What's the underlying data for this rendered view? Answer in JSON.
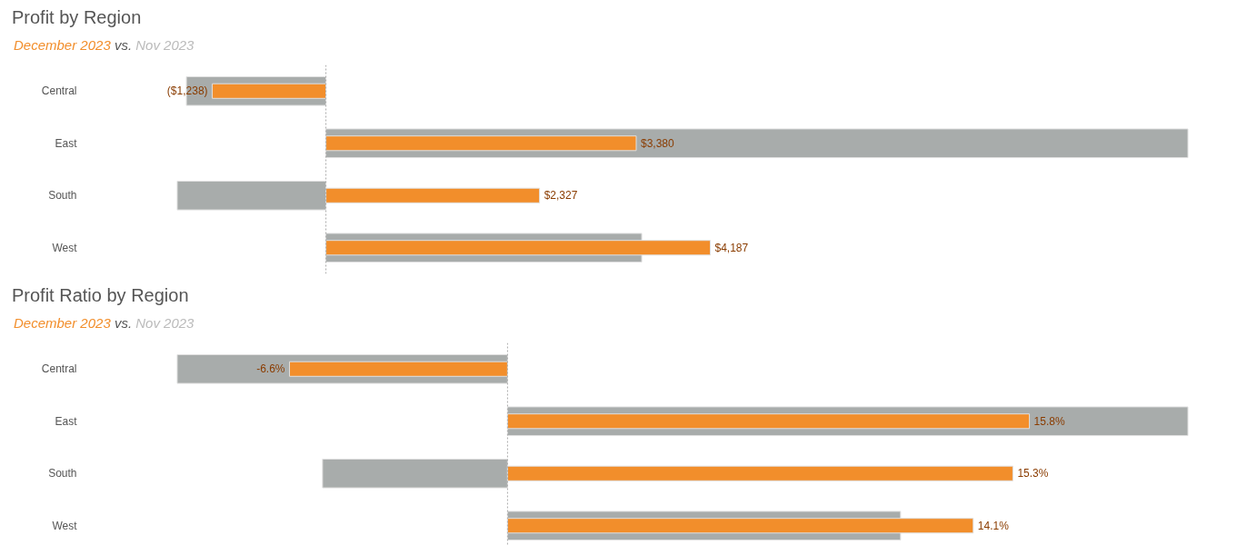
{
  "chart_data": [
    {
      "type": "bar",
      "orientation": "horizontal",
      "title": "Profit by Region",
      "subtitle": "vs.",
      "legend": "top left",
      "tick_labels": "y",
      "grid": false,
      "categories": [
        "Central",
        "East",
        "South",
        "West"
      ],
      "series": [
        {
          "name": "Nov 2023",
          "color": "#a8acab",
          "values": [
            -1520,
            9390,
            -1620,
            3440
          ]
        },
        {
          "name": "December 2023",
          "color": "#f28e2b",
          "values": [
            -1238,
            3380,
            2327,
            4187
          ],
          "value_labels": [
            "($1,238)",
            "$3,380",
            "$2,327",
            "$4,187"
          ]
        }
      ],
      "ref_lines": [
        {
          "axis": "x",
          "value": 0,
          "line_style": "dotted",
          "color": "#aaaaaa"
        }
      ]
    },
    {
      "type": "bar",
      "orientation": "horizontal",
      "title": "Profit Ratio by Region",
      "subtitle": "vs.",
      "legend": "top left",
      "tick_labels": "y",
      "grid": false,
      "categories": [
        "Central",
        "East",
        "South",
        "West"
      ],
      "series": [
        {
          "name": "Nov 2023",
          "color": "#a8acab",
          "values": [
            -10.0,
            20.6,
            -5.6,
            11.9
          ]
        },
        {
          "name": "December 2023",
          "color": "#f28e2b",
          "values": [
            -6.6,
            15.8,
            15.3,
            14.1
          ],
          "value_labels": [
            "-6.6%",
            "15.8%",
            "15.3%",
            "14.1%"
          ]
        }
      ],
      "ref_lines": [
        {
          "axis": "x",
          "value": 0,
          "line_style": "dotted",
          "color": "#aaaaaa"
        }
      ]
    }
  ]
}
